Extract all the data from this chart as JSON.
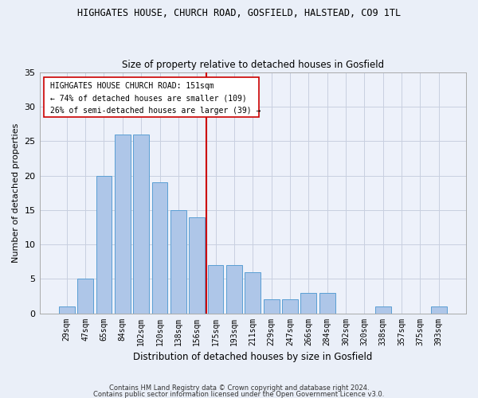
{
  "title1": "HIGHGATES HOUSE, CHURCH ROAD, GOSFIELD, HALSTEAD, CO9 1TL",
  "title2": "Size of property relative to detached houses in Gosfield",
  "xlabel": "Distribution of detached houses by size in Gosfield",
  "ylabel": "Number of detached properties",
  "bar_labels": [
    "29sqm",
    "47sqm",
    "65sqm",
    "84sqm",
    "102sqm",
    "120sqm",
    "138sqm",
    "156sqm",
    "175sqm",
    "193sqm",
    "211sqm",
    "229sqm",
    "247sqm",
    "266sqm",
    "284sqm",
    "302sqm",
    "320sqm",
    "338sqm",
    "357sqm",
    "375sqm",
    "393sqm"
  ],
  "bar_values": [
    1,
    5,
    20,
    26,
    26,
    19,
    15,
    14,
    7,
    7,
    6,
    2,
    2,
    3,
    3,
    0,
    0,
    1,
    0,
    0,
    1
  ],
  "bar_color": "#aec6e8",
  "bar_edge_color": "#5a9fd4",
  "reference_line_x": 7.5,
  "reference_line_color": "#cc0000",
  "ylim": [
    0,
    35
  ],
  "yticks": [
    0,
    5,
    10,
    15,
    20,
    25,
    30,
    35
  ],
  "annotation_title": "HIGHGATES HOUSE CHURCH ROAD: 151sqm",
  "annotation_line1": "← 74% of detached houses are smaller (109)",
  "annotation_line2": "26% of semi-detached houses are larger (39) →",
  "footer1": "Contains HM Land Registry data © Crown copyright and database right 2024.",
  "footer2": "Contains public sector information licensed under the Open Government Licence v3.0.",
  "bg_color": "#eaeff8",
  "plot_bg_color": "#edf1fa",
  "grid_color": "#c8cfe0"
}
